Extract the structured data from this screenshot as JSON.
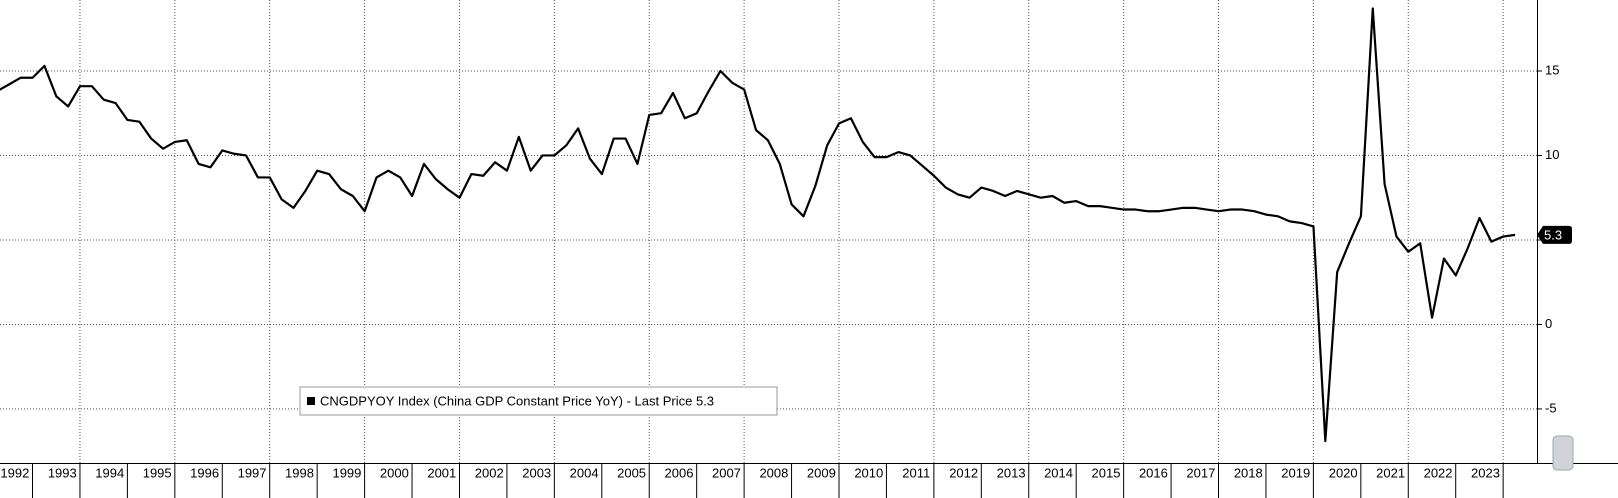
{
  "chart_data": {
    "type": "line",
    "categories": [
      null,
      "1992",
      null,
      null,
      null,
      "1993",
      null,
      null,
      null,
      "1994",
      null,
      null,
      null,
      "1995",
      null,
      null,
      null,
      "1996",
      null,
      null,
      null,
      "1997",
      null,
      null,
      null,
      "1998",
      null,
      null,
      null,
      "1999",
      null,
      null,
      null,
      "2000",
      null,
      null,
      null,
      "2001",
      null,
      null,
      null,
      "2002",
      null,
      null,
      null,
      "2003",
      null,
      null,
      null,
      "2004",
      null,
      null,
      null,
      "2005",
      null,
      null,
      null,
      "2006",
      null,
      null,
      null,
      "2007",
      null,
      null,
      null,
      "2008",
      null,
      null,
      null,
      "2009",
      null,
      null,
      null,
      "2010",
      null,
      null,
      null,
      "2011",
      null,
      null,
      null,
      "2012",
      null,
      null,
      null,
      "2013",
      null,
      null,
      null,
      "2014",
      null,
      null,
      null,
      "2015",
      null,
      null,
      null,
      "2016",
      null,
      null,
      null,
      "2017",
      null,
      null,
      null,
      "2018",
      null,
      null,
      null,
      "2019",
      null,
      null,
      null,
      "2020",
      null,
      null,
      null,
      "2021",
      null,
      null,
      null,
      "2022",
      null,
      null,
      null,
      "2023",
      null,
      null,
      null
    ],
    "series": [
      {
        "name": "CNGDPYOY Index (China GDP Constant Price YoY) - Last Price 5.3",
        "color": "#000000",
        "values": [
          13.8,
          14.2,
          14.6,
          14.6,
          15.3,
          13.5,
          12.9,
          14.1,
          14.1,
          13.3,
          13.1,
          12.1,
          12.0,
          11.0,
          10.4,
          10.8,
          10.9,
          9.5,
          9.3,
          10.3,
          10.1,
          10.0,
          8.7,
          8.7,
          7.4,
          6.9,
          7.9,
          9.1,
          8.9,
          8.0,
          7.6,
          6.7,
          8.7,
          9.1,
          8.7,
          7.6,
          9.5,
          8.6,
          8.0,
          7.5,
          8.9,
          8.8,
          9.6,
          9.1,
          11.1,
          9.1,
          10.0,
          10.0,
          10.6,
          11.6,
          9.8,
          8.9,
          11.0,
          11.0,
          9.5,
          12.4,
          12.5,
          13.7,
          12.2,
          12.5,
          13.8,
          15.0,
          14.3,
          13.9,
          11.5,
          10.9,
          9.5,
          7.1,
          6.4,
          8.2,
          10.6,
          11.9,
          12.2,
          10.8,
          9.9,
          9.9,
          10.2,
          10.0,
          9.4,
          8.8,
          8.1,
          7.7,
          7.5,
          8.1,
          7.9,
          7.6,
          7.9,
          7.7,
          7.5,
          7.6,
          7.2,
          7.3,
          7.0,
          7.0,
          6.9,
          6.8,
          6.8,
          6.7,
          6.7,
          6.8,
          6.9,
          6.9,
          6.8,
          6.7,
          6.8,
          6.8,
          6.7,
          6.5,
          6.4,
          6.1,
          6.0,
          5.8,
          -6.9,
          3.1,
          4.8,
          6.4,
          18.7,
          8.3,
          5.2,
          4.3,
          4.8,
          0.4,
          3.9,
          2.9,
          4.5,
          6.3,
          4.9,
          5.2,
          5.3
        ]
      }
    ],
    "ylim": [
      -8.2,
      19.2
    ],
    "yticks": [
      -5,
      0,
      5,
      10,
      15
    ],
    "grid": true
  }
}
